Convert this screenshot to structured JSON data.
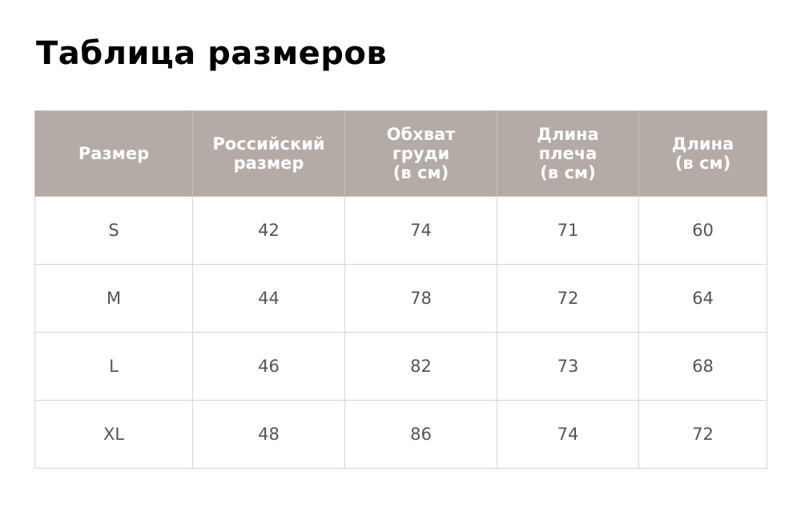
{
  "title": "Таблица размеров",
  "table": {
    "header": [
      [
        "Размер"
      ],
      [
        "Российский",
        "размер"
      ],
      [
        "Обхват",
        "груди",
        "(в см)"
      ],
      [
        "Длина",
        "плеча",
        "(в см)"
      ],
      [
        "Длина",
        "(в см)"
      ]
    ],
    "rows": [
      [
        "S",
        42,
        74,
        71,
        60
      ],
      [
        "M",
        44,
        78,
        72,
        64
      ],
      [
        "L",
        46,
        82,
        73,
        68
      ],
      [
        "XL",
        48,
        86,
        74,
        72
      ]
    ]
  }
}
